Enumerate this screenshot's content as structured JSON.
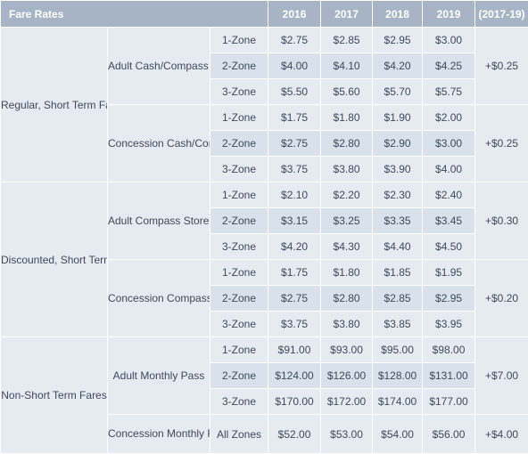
{
  "header": {
    "title": "Fare Rates",
    "years": [
      "2016",
      "2017",
      "2018",
      "2019"
    ],
    "increase": "(2017-19)"
  },
  "categories": [
    {
      "name": "Regular, Short Term Fares",
      "groups": [
        {
          "label": "Adult Cash/Compass Ticket",
          "increase": "+$0.25",
          "rows": [
            {
              "zone": "1-Zone",
              "values": [
                "$2.75",
                "$2.85",
                "$2.95",
                "$3.00"
              ]
            },
            {
              "zone": "2-Zone",
              "values": [
                "$4.00",
                "$4.10",
                "$4.20",
                "$4.25"
              ]
            },
            {
              "zone": "3-Zone",
              "values": [
                "$5.50",
                "$5.60",
                "$5.70",
                "$5.75"
              ]
            }
          ]
        },
        {
          "label": "Concession Cash/Compass Ticket",
          "increase": "+$0.25",
          "rows": [
            {
              "zone": "1-Zone",
              "values": [
                "$1.75",
                "$1.80",
                "$1.90",
                "$2.00"
              ]
            },
            {
              "zone": "2-Zone",
              "values": [
                "$2.75",
                "$2.80",
                "$2.90",
                "$3.00"
              ]
            },
            {
              "zone": "3-Zone",
              "values": [
                "$3.75",
                "$3.80",
                "$3.90",
                "$4.00"
              ]
            }
          ]
        }
      ]
    },
    {
      "name": "Discounted, Short Term Fares",
      "groups": [
        {
          "label": "Adult Compass Stored Value",
          "increase": "+$0.30",
          "rows": [
            {
              "zone": "1-Zone",
              "values": [
                "$2.10",
                "$2.20",
                "$2.30",
                "$2.40"
              ]
            },
            {
              "zone": "2-Zone",
              "values": [
                "$3.15",
                "$3.25",
                "$3.35",
                "$3.45"
              ]
            },
            {
              "zone": "3-Zone",
              "values": [
                "$4.20",
                "$4.30",
                "$4.40",
                "$4.50"
              ]
            }
          ]
        },
        {
          "label": "Concession Compass Stored Value",
          "increase": "+$0.20",
          "rows": [
            {
              "zone": "1-Zone",
              "values": [
                "$1.75",
                "$1.80",
                "$1.85",
                "$1.95"
              ]
            },
            {
              "zone": "2-Zone",
              "values": [
                "$2.75",
                "$2.80",
                "$2.85",
                "$2.95"
              ]
            },
            {
              "zone": "3-Zone",
              "values": [
                "$3.75",
                "$3.80",
                "$3.85",
                "$3.95"
              ]
            }
          ]
        }
      ]
    },
    {
      "name": "Non-Short Term Fares",
      "groups": [
        {
          "label": "Adult Monthly Pass",
          "increase": "+$7.00",
          "rows": [
            {
              "zone": "1-Zone",
              "values": [
                "$91.00",
                "$93.00",
                "$95.00",
                "$98.00"
              ]
            },
            {
              "zone": "2-Zone",
              "values": [
                "$124.00",
                "$126.00",
                "$128.00",
                "$131.00"
              ]
            },
            {
              "zone": "3-Zone",
              "values": [
                "$170.00",
                "$172.00",
                "$174.00",
                "$177.00"
              ]
            }
          ]
        },
        {
          "label": "Concession Monthly Pass",
          "increase": "+$4.00",
          "rows": [
            {
              "zone": "All Zones",
              "values": [
                "$52.00",
                "$53.00",
                "$54.00",
                "$56.00"
              ]
            }
          ]
        }
      ]
    }
  ]
}
